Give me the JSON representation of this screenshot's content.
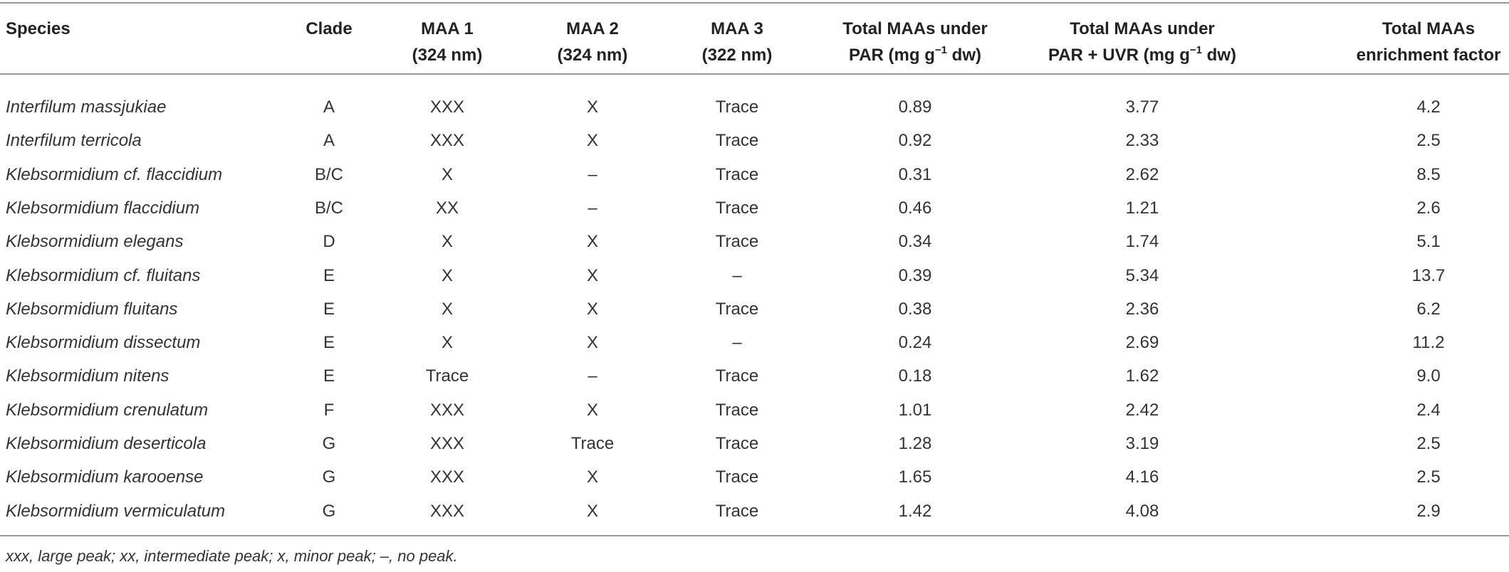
{
  "table": {
    "columns": [
      [
        "Species"
      ],
      [
        "Clade"
      ],
      [
        "MAA 1",
        "(324 nm)"
      ],
      [
        "MAA 2",
        "(324 nm)"
      ],
      [
        "MAA 3",
        "(322 nm)"
      ],
      [
        "Total MAAs under",
        {
          "pre": "PAR (mg g",
          "sup": "−1",
          "post": " dw)"
        }
      ],
      [
        "Total MAAs under",
        {
          "pre": "PAR + UVR (mg g",
          "sup": "−1",
          "post": " dw)"
        }
      ],
      [
        "Total MAAs",
        "enrichment factor"
      ]
    ],
    "rows": [
      [
        "Interfilum massjukiae",
        "A",
        "XXX",
        "X",
        "Trace",
        "0.89",
        "3.77",
        "4.2"
      ],
      [
        "Interfilum terricola",
        "A",
        "XXX",
        "X",
        "Trace",
        "0.92",
        "2.33",
        "2.5"
      ],
      [
        "Klebsormidium cf. flaccidium",
        "B/C",
        "X",
        "–",
        "Trace",
        "0.31",
        "2.62",
        "8.5"
      ],
      [
        "Klebsormidium flaccidium",
        "B/C",
        "XX",
        "–",
        "Trace",
        "0.46",
        "1.21",
        "2.6"
      ],
      [
        "Klebsormidium elegans",
        "D",
        "X",
        "X",
        "Trace",
        "0.34",
        "1.74",
        "5.1"
      ],
      [
        "Klebsormidium cf. fluitans",
        "E",
        "X",
        "X",
        "–",
        "0.39",
        "5.34",
        "13.7"
      ],
      [
        "Klebsormidium fluitans",
        "E",
        "X",
        "X",
        "Trace",
        "0.38",
        "2.36",
        "6.2"
      ],
      [
        "Klebsormidium dissectum",
        "E",
        "X",
        "X",
        "–",
        "0.24",
        "2.69",
        "11.2"
      ],
      [
        "Klebsormidium nitens",
        "E",
        "Trace",
        "–",
        "Trace",
        "0.18",
        "1.62",
        "9.0"
      ],
      [
        "Klebsormidium crenulatum",
        "F",
        "XXX",
        "X",
        "Trace",
        "1.01",
        "2.42",
        "2.4"
      ],
      [
        "Klebsormidium deserticola",
        "G",
        "XXX",
        "Trace",
        "Trace",
        "1.28",
        "3.19",
        "2.5"
      ],
      [
        "Klebsormidium karooense",
        "G",
        "XXX",
        "X",
        "Trace",
        "1.65",
        "4.16",
        "2.5"
      ],
      [
        "Klebsormidium vermiculatum",
        "G",
        "XXX",
        "X",
        "Trace",
        "1.42",
        "4.08",
        "2.9"
      ]
    ],
    "footnote": "xxx, large peak; xx, intermediate peak; x, minor peak; –, no peak."
  }
}
